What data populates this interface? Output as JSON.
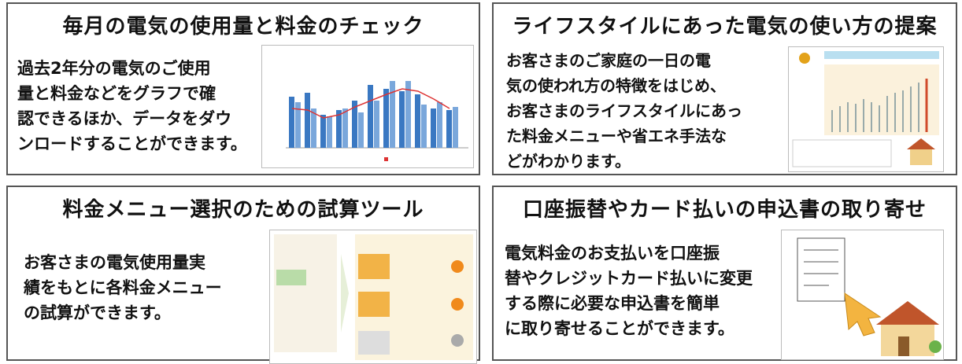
{
  "panels": [
    {
      "title": "毎月の電気の使用量と料金のチェック",
      "lines": [
        "過去2年分の電気のご使用",
        "量と料金などをグラフで確",
        "認できるほか、データをダウ",
        "ンロードすることができます。"
      ]
    },
    {
      "title": "ライフスタイルにあった電気の使い方の提案",
      "lines": [
        "お客さまのご家庭の一日の電",
        "気の使われ方の特徴をはじめ、",
        "お客さまのライフスタイルにあっ",
        "た料金メニューや省エネ手法な",
        "どがわかります。"
      ]
    },
    {
      "title": "料金メニュー選択のための試算ツール",
      "lines": [
        "お客さまの電気使用量実",
        "績をもとに各料金メニュー",
        "の試算ができます。"
      ]
    },
    {
      "title": "口座振替やカード払いの申込書の取り寄せ",
      "lines": [
        "電気料金のお支払いを口座振",
        "替やクレジットカード払いに変更",
        "する際に必要な申込書を簡単",
        "に取り寄せることができます。"
      ]
    }
  ]
}
